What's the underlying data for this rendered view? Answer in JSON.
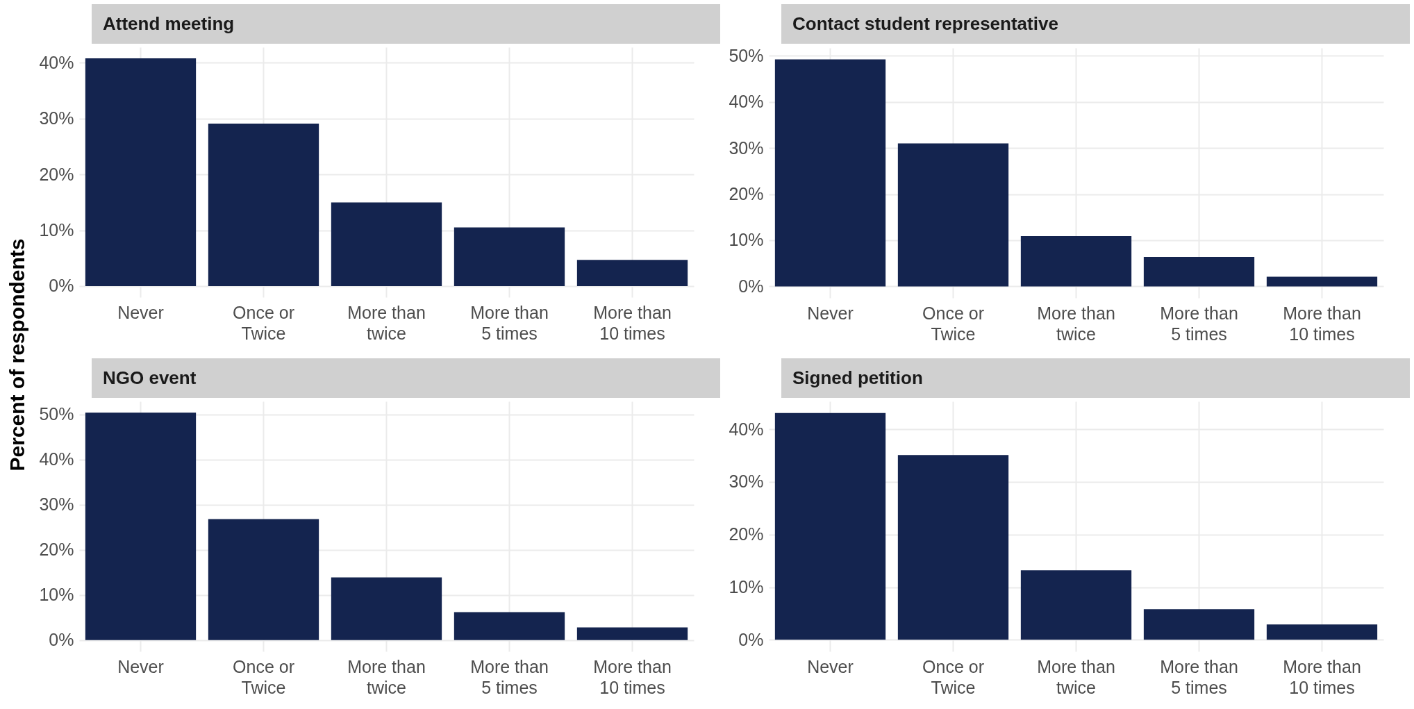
{
  "chart_data": [
    {
      "type": "bar",
      "title": "Attend meeting",
      "ylabel": "Percent of respondents",
      "categories": [
        "Never",
        "Once or\nTwice",
        "More than\ntwice",
        "More than\n5 times",
        "More than\n10 times"
      ],
      "values": [
        40.8,
        29.1,
        15.0,
        10.5,
        4.7
      ],
      "color": "#14244f",
      "ylim": [
        -2.0,
        42.8
      ],
      "yticks": [
        {
          "value": 0,
          "label": "0%"
        },
        {
          "value": 10,
          "label": "10%"
        },
        {
          "value": 20,
          "label": "20%"
        },
        {
          "value": 30,
          "label": "30%"
        },
        {
          "value": 40,
          "label": "40%"
        }
      ],
      "grid": true
    },
    {
      "type": "bar",
      "title": "Contact student representative",
      "categories": [
        "Never",
        "Once or\nTwice",
        "More than\ntwice",
        "More than\n5 times",
        "More than\n10 times"
      ],
      "values": [
        49.2,
        31.0,
        10.9,
        6.4,
        2.1
      ],
      "color": "#14244f",
      "ylim": [
        -2.5,
        51.7
      ],
      "yticks": [
        {
          "value": 0,
          "label": "0%"
        },
        {
          "value": 10,
          "label": "10%"
        },
        {
          "value": 20,
          "label": "20%"
        },
        {
          "value": 30,
          "label": "30%"
        },
        {
          "value": 40,
          "label": "40%"
        },
        {
          "value": 50,
          "label": "50%"
        }
      ],
      "grid": true
    },
    {
      "type": "bar",
      "title": "NGO event",
      "categories": [
        "Never",
        "Once or\nTwice",
        "More than\ntwice",
        "More than\n5 times",
        "More than\n10 times"
      ],
      "values": [
        50.4,
        26.8,
        13.9,
        6.2,
        2.8
      ],
      "color": "#14244f",
      "ylim": [
        -2.5,
        52.9
      ],
      "yticks": [
        {
          "value": 0,
          "label": "0%"
        },
        {
          "value": 10,
          "label": "10%"
        },
        {
          "value": 20,
          "label": "20%"
        },
        {
          "value": 30,
          "label": "30%"
        },
        {
          "value": 40,
          "label": "40%"
        },
        {
          "value": 50,
          "label": "50%"
        }
      ],
      "grid": true
    },
    {
      "type": "bar",
      "title": "Signed petition",
      "categories": [
        "Never",
        "Once or\nTwice",
        "More than\ntwice",
        "More than\n5 times",
        "More than\n10 times"
      ],
      "values": [
        43.1,
        35.1,
        13.2,
        5.8,
        2.9
      ],
      "color": "#14244f",
      "ylim": [
        -2.2,
        45.3
      ],
      "yticks": [
        {
          "value": 0,
          "label": "0%"
        },
        {
          "value": 10,
          "label": "10%"
        },
        {
          "value": 20,
          "label": "20%"
        },
        {
          "value": 30,
          "label": "30%"
        },
        {
          "value": 40,
          "label": "40%"
        }
      ],
      "grid": true
    }
  ]
}
